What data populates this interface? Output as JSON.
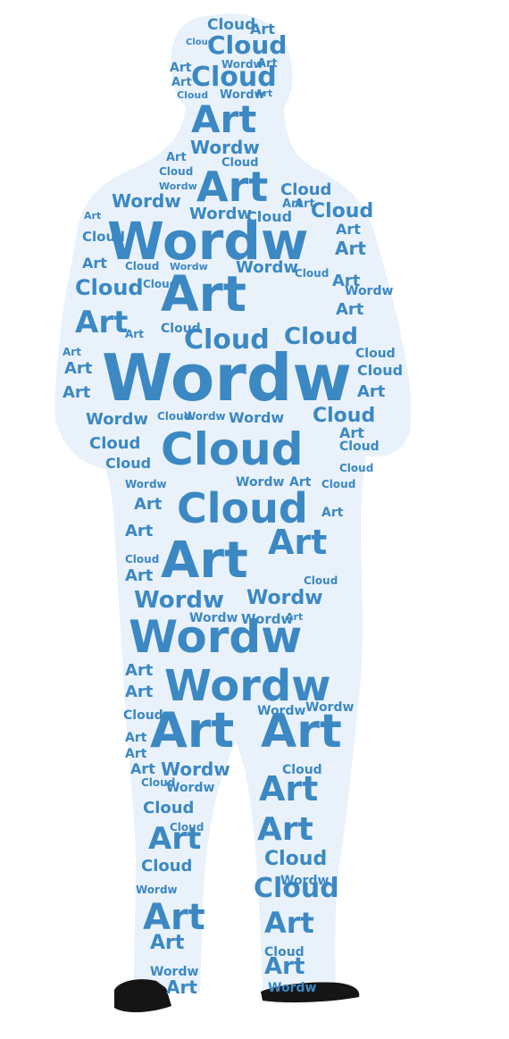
{
  "word_cloud": {
    "words": [
      "Cloud",
      "Art",
      "Wordw"
    ],
    "text_color": "#3b88c3",
    "silhouette_fill": "#e9f2fb",
    "feet_color": "#151515"
  }
}
